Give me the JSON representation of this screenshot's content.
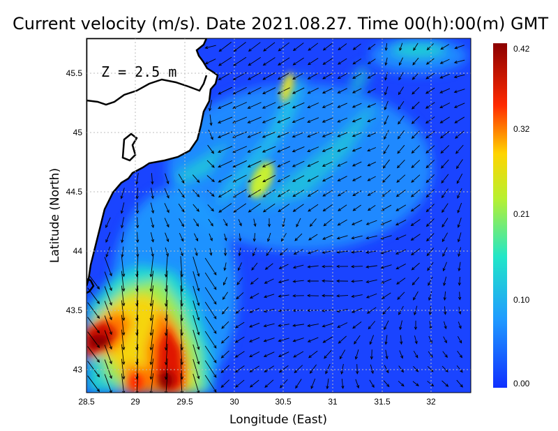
{
  "title": "Current velocity (m/s). Date 2021.08.27. Time 00(h):00(m) GMT",
  "depth_label": "Z = 2.5 m",
  "x_axis_title": "Longitude (East)",
  "y_axis_title": "Latitude (North)",
  "x_ticks": [
    "28.5",
    "29",
    "29.5",
    "30",
    "30.5",
    "31",
    "31.5",
    "32"
  ],
  "y_ticks": [
    "45.5",
    "45",
    "44.5",
    "44",
    "43.5",
    "43"
  ],
  "colorbar": {
    "labels": [
      "0.42",
      "0.32",
      "0.21",
      "0.10",
      "0.00"
    ],
    "colors": [
      "#8b0000",
      "#ff2a00",
      "#ffd400",
      "#22e6c8",
      "#1f9bff",
      "#1030ff"
    ]
  },
  "colors": {
    "land": "#ffffff",
    "sea_background": "#1a44ff",
    "grid": "#bdbdbd",
    "arrow": "#000000"
  },
  "chart_data": {
    "type": "heatmap",
    "variable": "current velocity (m/s)",
    "xlabel": "Longitude (East)",
    "ylabel": "Latitude (North)",
    "xlim": [
      28.5,
      32.4
    ],
    "ylim": [
      42.8,
      45.8
    ],
    "color_range": [
      0.0,
      0.42
    ],
    "grid": true,
    "features": [
      {
        "lon": 28.6,
        "lat": 43.25,
        "speed": 0.42
      },
      {
        "lon": 29.4,
        "lat": 43.05,
        "speed": 0.4
      },
      {
        "lon": 29.0,
        "lat": 43.5,
        "speed": 0.32
      },
      {
        "lon": 30.3,
        "lat": 44.6,
        "speed": 0.26
      },
      {
        "lon": 30.55,
        "lat": 45.45,
        "speed": 0.22
      },
      {
        "lon": 31.1,
        "lat": 44.9,
        "speed": 0.14
      },
      {
        "lon": 29.9,
        "lat": 44.8,
        "speed": 0.12
      },
      {
        "lon": 31.8,
        "lat": 45.7,
        "speed": 0.14
      }
    ]
  }
}
